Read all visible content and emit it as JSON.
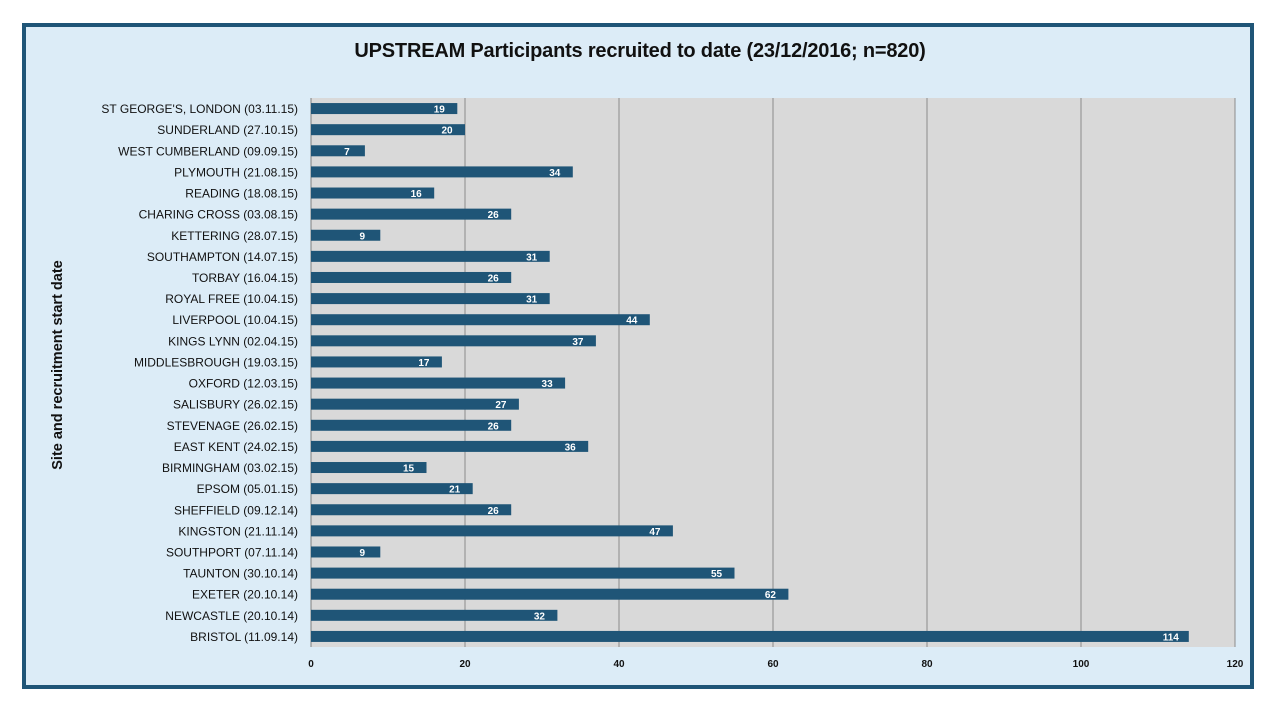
{
  "chart_data": {
    "type": "bar",
    "orientation": "horizontal",
    "title": "UPSTREAM Participants recruited to date (23/12/2016; n=820)",
    "ylabel": "Site and recruitment start date",
    "xlabel": "",
    "xlim": [
      0,
      120
    ],
    "x_ticks": [
      0,
      20,
      40,
      60,
      80,
      100,
      120
    ],
    "grid": true,
    "legend": "none",
    "colors": {
      "bar": "#1f5577",
      "plot_bg": "#d9d9d9",
      "frame": "#1f5577",
      "slide_bg": "#dcecf7"
    },
    "categories": [
      "ST GEORGE'S, LONDON (03.11.15)",
      "SUNDERLAND (27.10.15)",
      "WEST CUMBERLAND (09.09.15)",
      "PLYMOUTH (21.08.15)",
      "READING (18.08.15)",
      "CHARING CROSS (03.08.15)",
      "KETTERING (28.07.15)",
      "SOUTHAMPTON (14.07.15)",
      "TORBAY (16.04.15)",
      "ROYAL FREE (10.04.15)",
      "LIVERPOOL (10.04.15)",
      "KINGS LYNN (02.04.15)",
      "MIDDLESBROUGH (19.03.15)",
      "OXFORD (12.03.15)",
      "SALISBURY (26.02.15)",
      "STEVENAGE (26.02.15)",
      "EAST KENT (24.02.15)",
      "BIRMINGHAM (03.02.15)",
      "EPSOM (05.01.15)",
      "SHEFFIELD (09.12.14)",
      "KINGSTON (21.11.14)",
      "SOUTHPORT (07.11.14)",
      "TAUNTON (30.10.14)",
      "EXETER (20.10.14)",
      "NEWCASTLE (20.10.14)",
      "BRISTOL (11.09.14)"
    ],
    "values": [
      19,
      20,
      7,
      34,
      16,
      26,
      9,
      31,
      26,
      31,
      44,
      37,
      17,
      33,
      27,
      26,
      36,
      15,
      21,
      26,
      47,
      9,
      55,
      62,
      32,
      114
    ]
  }
}
